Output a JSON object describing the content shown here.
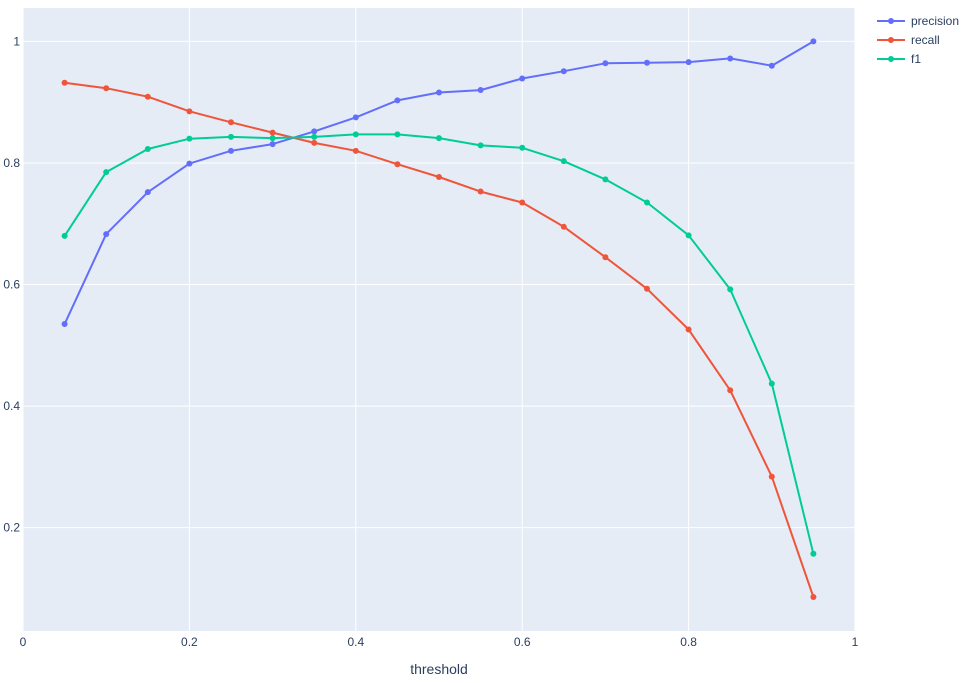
{
  "chart_data": {
    "type": "line",
    "xlabel": "threshold",
    "ylabel": "",
    "xlim": [
      0,
      1
    ],
    "ylim": [
      0.03,
      1.055
    ],
    "x_ticks": [
      0,
      0.2,
      0.4,
      0.6,
      0.8,
      1
    ],
    "x_tick_labels": [
      "0",
      "0.2",
      "0.4",
      "0.6",
      "0.8",
      "1"
    ],
    "y_ticks": [
      0.2,
      0.4,
      0.6,
      0.8,
      1
    ],
    "y_tick_labels": [
      "0.2",
      "0.4",
      "0.6",
      "0.8",
      "1"
    ],
    "grid": true,
    "legend_position": "top-right",
    "x": [
      0.05,
      0.1,
      0.15,
      0.2,
      0.25,
      0.3,
      0.35,
      0.4,
      0.45,
      0.5,
      0.55,
      0.6,
      0.65,
      0.7,
      0.75,
      0.8,
      0.85,
      0.9,
      0.95
    ],
    "series": [
      {
        "name": "precision",
        "color": "#636efa",
        "values": [
          0.535,
          0.683,
          0.752,
          0.799,
          0.82,
          0.831,
          0.852,
          0.875,
          0.903,
          0.916,
          0.92,
          0.939,
          0.951,
          0.964,
          0.965,
          0.966,
          0.972,
          0.96,
          1.0
        ]
      },
      {
        "name": "recall",
        "color": "#ef553b",
        "values": [
          0.932,
          0.923,
          0.909,
          0.885,
          0.867,
          0.85,
          0.833,
          0.82,
          0.798,
          0.777,
          0.753,
          0.735,
          0.695,
          0.645,
          0.593,
          0.526,
          0.426,
          0.284,
          0.086
        ]
      },
      {
        "name": "f1",
        "color": "#00cc96",
        "values": [
          0.68,
          0.785,
          0.823,
          0.84,
          0.843,
          0.841,
          0.843,
          0.847,
          0.847,
          0.841,
          0.829,
          0.825,
          0.803,
          0.773,
          0.735,
          0.681,
          0.592,
          0.437,
          0.157
        ]
      }
    ]
  }
}
